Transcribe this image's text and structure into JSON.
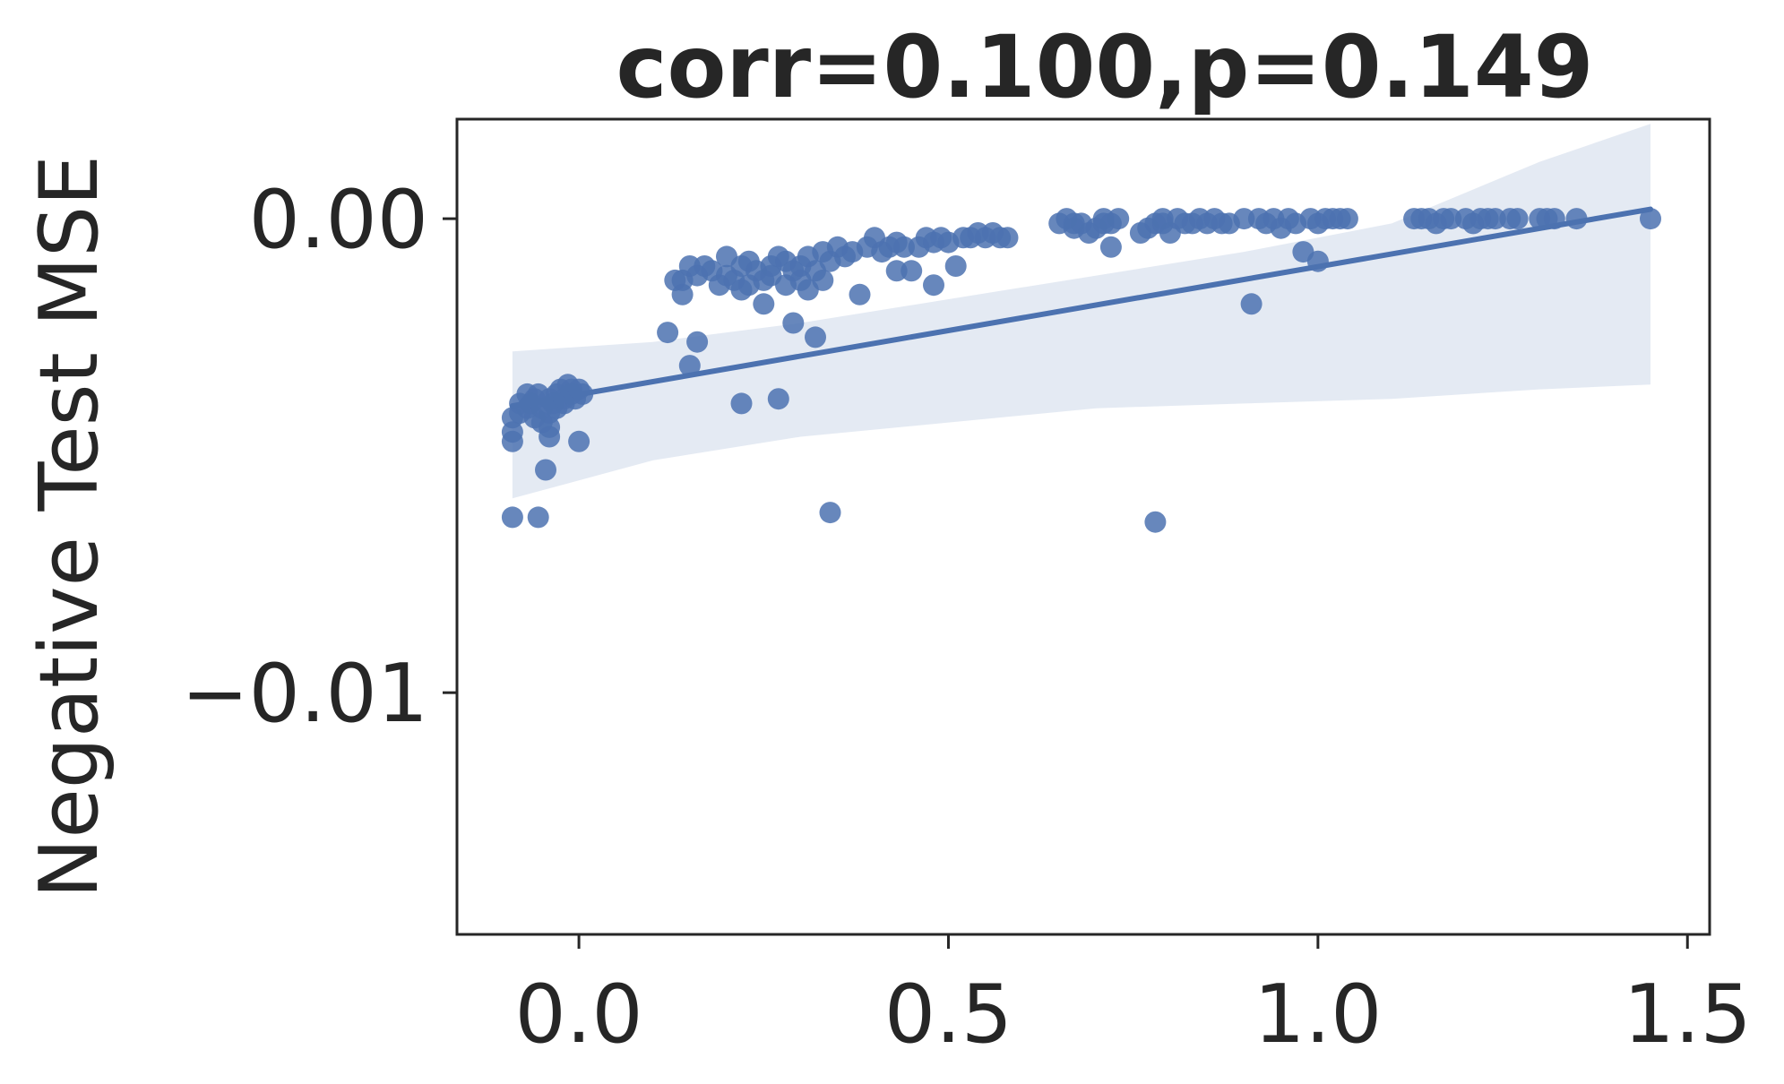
{
  "chart_data": {
    "type": "scatter",
    "title": "corr=0.100,p=0.149",
    "xlabel": "",
    "ylabel": "Negative Test MSE",
    "xlim": [
      -0.165,
      1.53
    ],
    "ylim": [
      -0.0151,
      0.0021
    ],
    "x_ticks": [
      {
        "value": 0.0,
        "label": "0.0"
      },
      {
        "value": 0.5,
        "label": "0.5"
      },
      {
        "value": 1.0,
        "label": "1.0"
      },
      {
        "value": 1.5,
        "label": "1.5"
      }
    ],
    "y_ticks": [
      {
        "value": 0.0,
        "label": "0.00"
      },
      {
        "value": -0.01,
        "label": "−0.01"
      }
    ],
    "grid": false,
    "colors": {
      "points": "#4c72b0",
      "line": "#4c72b0",
      "band": "#4c72b0",
      "axes": "#262626"
    },
    "regression": {
      "x": [
        -0.09,
        1.45
      ],
      "y": [
        -0.00395,
        0.0002
      ]
    },
    "confidence_band": {
      "x": [
        -0.09,
        0.1,
        0.3,
        0.5,
        0.7,
        0.9,
        1.1,
        1.3,
        1.45
      ],
      "upper": [
        -0.0028,
        -0.0026,
        -0.0022,
        -0.0017,
        -0.0012,
        -0.0007,
        -0.0001,
        0.0012,
        0.002
      ],
      "lower": [
        -0.0059,
        -0.0051,
        -0.0046,
        -0.0043,
        -0.004,
        -0.0039,
        -0.0038,
        -0.0036,
        -0.0035
      ]
    },
    "points": [
      {
        "x": -0.09,
        "y": -0.0042
      },
      {
        "x": -0.09,
        "y": -0.0045
      },
      {
        "x": -0.09,
        "y": -0.0047
      },
      {
        "x": -0.09,
        "y": -0.0063
      },
      {
        "x": -0.08,
        "y": -0.0039
      },
      {
        "x": -0.08,
        "y": -0.0041
      },
      {
        "x": -0.07,
        "y": -0.0037
      },
      {
        "x": -0.07,
        "y": -0.004
      },
      {
        "x": -0.065,
        "y": -0.0039
      },
      {
        "x": -0.06,
        "y": -0.0038
      },
      {
        "x": -0.06,
        "y": -0.0042
      },
      {
        "x": -0.055,
        "y": -0.0037
      },
      {
        "x": -0.055,
        "y": -0.0063
      },
      {
        "x": -0.05,
        "y": -0.004
      },
      {
        "x": -0.05,
        "y": -0.0043
      },
      {
        "x": -0.045,
        "y": -0.0053
      },
      {
        "x": -0.04,
        "y": -0.0038
      },
      {
        "x": -0.04,
        "y": -0.0041
      },
      {
        "x": -0.04,
        "y": -0.0044
      },
      {
        "x": -0.04,
        "y": -0.0046
      },
      {
        "x": -0.035,
        "y": -0.0039
      },
      {
        "x": -0.03,
        "y": -0.0037
      },
      {
        "x": -0.03,
        "y": -0.004
      },
      {
        "x": -0.025,
        "y": -0.0036
      },
      {
        "x": -0.02,
        "y": -0.0039
      },
      {
        "x": -0.02,
        "y": -0.0038
      },
      {
        "x": -0.015,
        "y": -0.0035
      },
      {
        "x": -0.01,
        "y": -0.0037
      },
      {
        "x": -0.01,
        "y": -0.0036
      },
      {
        "x": -0.005,
        "y": -0.0038
      },
      {
        "x": 0.0,
        "y": -0.0036
      },
      {
        "x": 0.0,
        "y": -0.0047
      },
      {
        "x": 0.005,
        "y": -0.0037
      },
      {
        "x": 0.12,
        "y": -0.0024
      },
      {
        "x": 0.13,
        "y": -0.0013
      },
      {
        "x": 0.14,
        "y": -0.0013
      },
      {
        "x": 0.14,
        "y": -0.0016
      },
      {
        "x": 0.15,
        "y": -0.0031
      },
      {
        "x": 0.15,
        "y": -0.001
      },
      {
        "x": 0.16,
        "y": -0.0012
      },
      {
        "x": 0.16,
        "y": -0.0026
      },
      {
        "x": 0.17,
        "y": -0.001
      },
      {
        "x": 0.18,
        "y": -0.0011
      },
      {
        "x": 0.19,
        "y": -0.0014
      },
      {
        "x": 0.2,
        "y": -0.0008
      },
      {
        "x": 0.2,
        "y": -0.0012
      },
      {
        "x": 0.21,
        "y": -0.0013
      },
      {
        "x": 0.22,
        "y": -0.001
      },
      {
        "x": 0.22,
        "y": -0.0039
      },
      {
        "x": 0.22,
        "y": -0.0015
      },
      {
        "x": 0.23,
        "y": -0.0009
      },
      {
        "x": 0.23,
        "y": -0.0014
      },
      {
        "x": 0.24,
        "y": -0.0011
      },
      {
        "x": 0.25,
        "y": -0.0018
      },
      {
        "x": 0.25,
        "y": -0.0013
      },
      {
        "x": 0.26,
        "y": -0.001
      },
      {
        "x": 0.26,
        "y": -0.0012
      },
      {
        "x": 0.27,
        "y": -0.0008
      },
      {
        "x": 0.27,
        "y": -0.0038
      },
      {
        "x": 0.28,
        "y": -0.0014
      },
      {
        "x": 0.28,
        "y": -0.0009
      },
      {
        "x": 0.29,
        "y": -0.0011
      },
      {
        "x": 0.29,
        "y": -0.0022
      },
      {
        "x": 0.3,
        "y": -0.0013
      },
      {
        "x": 0.3,
        "y": -0.001
      },
      {
        "x": 0.31,
        "y": -0.0008
      },
      {
        "x": 0.31,
        "y": -0.0015
      },
      {
        "x": 0.32,
        "y": -0.0011
      },
      {
        "x": 0.32,
        "y": -0.0025
      },
      {
        "x": 0.33,
        "y": -0.0007
      },
      {
        "x": 0.33,
        "y": -0.0013
      },
      {
        "x": 0.34,
        "y": -0.0062
      },
      {
        "x": 0.34,
        "y": -0.0009
      },
      {
        "x": 0.35,
        "y": -0.0006
      },
      {
        "x": 0.36,
        "y": -0.0008
      },
      {
        "x": 0.37,
        "y": -0.0007
      },
      {
        "x": 0.38,
        "y": -0.0016
      },
      {
        "x": 0.39,
        "y": -0.0006
      },
      {
        "x": 0.4,
        "y": -0.0004
      },
      {
        "x": 0.41,
        "y": -0.0007
      },
      {
        "x": 0.42,
        "y": -0.0006
      },
      {
        "x": 0.43,
        "y": -0.0011
      },
      {
        "x": 0.43,
        "y": -0.0005
      },
      {
        "x": 0.44,
        "y": -0.0006
      },
      {
        "x": 0.45,
        "y": -0.0011
      },
      {
        "x": 0.46,
        "y": -0.0006
      },
      {
        "x": 0.47,
        "y": -0.0004
      },
      {
        "x": 0.48,
        "y": -0.0014
      },
      {
        "x": 0.48,
        "y": -0.0005
      },
      {
        "x": 0.49,
        "y": -0.0004
      },
      {
        "x": 0.5,
        "y": -0.0005
      },
      {
        "x": 0.51,
        "y": -0.001
      },
      {
        "x": 0.52,
        "y": -0.0004
      },
      {
        "x": 0.53,
        "y": -0.0004
      },
      {
        "x": 0.54,
        "y": -0.0003
      },
      {
        "x": 0.55,
        "y": -0.0004
      },
      {
        "x": 0.56,
        "y": -0.0003
      },
      {
        "x": 0.57,
        "y": -0.0004
      },
      {
        "x": 0.58,
        "y": -0.0004
      },
      {
        "x": 0.65,
        "y": -0.0001
      },
      {
        "x": 0.66,
        "y": 0.0
      },
      {
        "x": 0.67,
        "y": -0.0001
      },
      {
        "x": 0.67,
        "y": -0.0002
      },
      {
        "x": 0.68,
        "y": -0.0001
      },
      {
        "x": 0.69,
        "y": -0.0003
      },
      {
        "x": 0.7,
        "y": -0.0002
      },
      {
        "x": 0.71,
        "y": -0.0001
      },
      {
        "x": 0.71,
        "y": 0.0
      },
      {
        "x": 0.72,
        "y": -0.0006
      },
      {
        "x": 0.72,
        "y": -0.0001
      },
      {
        "x": 0.73,
        "y": 0.0
      },
      {
        "x": 0.76,
        "y": -0.0003
      },
      {
        "x": 0.77,
        "y": -0.0002
      },
      {
        "x": 0.78,
        "y": -0.0001
      },
      {
        "x": 0.78,
        "y": -0.0064
      },
      {
        "x": 0.79,
        "y": 0.0
      },
      {
        "x": 0.79,
        "y": -0.0001
      },
      {
        "x": 0.8,
        "y": -0.0003
      },
      {
        "x": 0.81,
        "y": 0.0
      },
      {
        "x": 0.82,
        "y": -0.0001
      },
      {
        "x": 0.83,
        "y": -0.0001
      },
      {
        "x": 0.84,
        "y": 0.0
      },
      {
        "x": 0.85,
        "y": -0.0001
      },
      {
        "x": 0.86,
        "y": 0.0
      },
      {
        "x": 0.87,
        "y": -0.0001
      },
      {
        "x": 0.88,
        "y": -0.0001
      },
      {
        "x": 0.9,
        "y": 0.0
      },
      {
        "x": 0.91,
        "y": -0.0018
      },
      {
        "x": 0.92,
        "y": 0.0
      },
      {
        "x": 0.93,
        "y": -0.0001
      },
      {
        "x": 0.94,
        "y": 0.0
      },
      {
        "x": 0.95,
        "y": -0.0002
      },
      {
        "x": 0.96,
        "y": 0.0
      },
      {
        "x": 0.97,
        "y": -0.0001
      },
      {
        "x": 0.98,
        "y": -0.0007
      },
      {
        "x": 0.99,
        "y": 0.0
      },
      {
        "x": 1.0,
        "y": -0.0009
      },
      {
        "x": 1.0,
        "y": -0.0001
      },
      {
        "x": 1.01,
        "y": 0.0
      },
      {
        "x": 1.02,
        "y": 0.0
      },
      {
        "x": 1.03,
        "y": 0.0
      },
      {
        "x": 1.04,
        "y": 0.0
      },
      {
        "x": 1.13,
        "y": 0.0
      },
      {
        "x": 1.14,
        "y": 0.0
      },
      {
        "x": 1.15,
        "y": 0.0
      },
      {
        "x": 1.16,
        "y": -0.0001
      },
      {
        "x": 1.17,
        "y": 0.0
      },
      {
        "x": 1.18,
        "y": 0.0
      },
      {
        "x": 1.2,
        "y": 0.0
      },
      {
        "x": 1.21,
        "y": -0.0001
      },
      {
        "x": 1.22,
        "y": 0.0
      },
      {
        "x": 1.23,
        "y": 0.0
      },
      {
        "x": 1.24,
        "y": 0.0
      },
      {
        "x": 1.26,
        "y": 0.0
      },
      {
        "x": 1.27,
        "y": 0.0
      },
      {
        "x": 1.3,
        "y": 0.0
      },
      {
        "x": 1.31,
        "y": 0.0
      },
      {
        "x": 1.32,
        "y": 0.0
      },
      {
        "x": 1.35,
        "y": 0.0
      },
      {
        "x": 1.45,
        "y": 0.0
      }
    ]
  }
}
